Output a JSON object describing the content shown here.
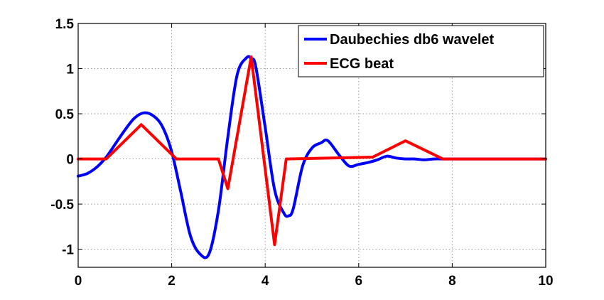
{
  "chart_data": {
    "type": "line",
    "title": "",
    "xlabel": "",
    "ylabel": "",
    "xlim": [
      0,
      10
    ],
    "ylim": [
      -1.2,
      1.5
    ],
    "xticks": [
      0,
      2,
      4,
      6,
      8,
      10
    ],
    "xtick_labels": [
      "0",
      "2",
      "4",
      "6",
      "8",
      "10"
    ],
    "yticks": [
      -1,
      -0.5,
      0,
      0.5,
      1,
      1.5
    ],
    "ytick_labels": [
      "-1",
      "-0.5",
      "0",
      "0.5",
      "1",
      "1.5"
    ],
    "grid": true,
    "legend_position": "top-right",
    "series": [
      {
        "name": "Daubechies db6 wavelet",
        "color": "#0000ff",
        "x": [
          0,
          0.2,
          0.4,
          0.6,
          0.8,
          1.0,
          1.2,
          1.4,
          1.6,
          1.8,
          2.0,
          2.2,
          2.4,
          2.6,
          2.8,
          3.0,
          3.2,
          3.4,
          3.6,
          3.7,
          3.8,
          4.0,
          4.2,
          4.4,
          4.5,
          4.6,
          4.8,
          5.0,
          5.2,
          5.3,
          5.4,
          5.6,
          5.8,
          6.0,
          6.2,
          6.4,
          6.6,
          6.8,
          7.0,
          7.2,
          7.4,
          7.6,
          7.8,
          8.0,
          9.0,
          10.0
        ],
        "y": [
          -0.19,
          -0.16,
          -0.09,
          0.02,
          0.17,
          0.32,
          0.45,
          0.51,
          0.48,
          0.36,
          0.08,
          -0.38,
          -0.85,
          -1.05,
          -1.05,
          -0.57,
          0.24,
          0.93,
          1.12,
          1.11,
          1.02,
          0.35,
          -0.34,
          -0.6,
          -0.63,
          -0.55,
          -0.08,
          0.12,
          0.18,
          0.21,
          0.17,
          0.03,
          -0.08,
          -0.06,
          -0.04,
          -0.01,
          0.03,
          0.01,
          0.0,
          0.0,
          -0.01,
          0.0,
          0.0,
          0.0,
          0.0,
          0.0
        ]
      },
      {
        "name": "ECG beat",
        "color": "#ff0000",
        "x": [
          0,
          0.6,
          1.35,
          2.1,
          3.0,
          3.2,
          3.7,
          4.2,
          4.45,
          6.3,
          7.0,
          7.8,
          10.0
        ],
        "y": [
          0.0,
          0.0,
          0.38,
          0.0,
          0.0,
          -0.33,
          1.13,
          -0.95,
          0.0,
          0.02,
          0.2,
          0.0,
          0.0
        ]
      }
    ]
  }
}
